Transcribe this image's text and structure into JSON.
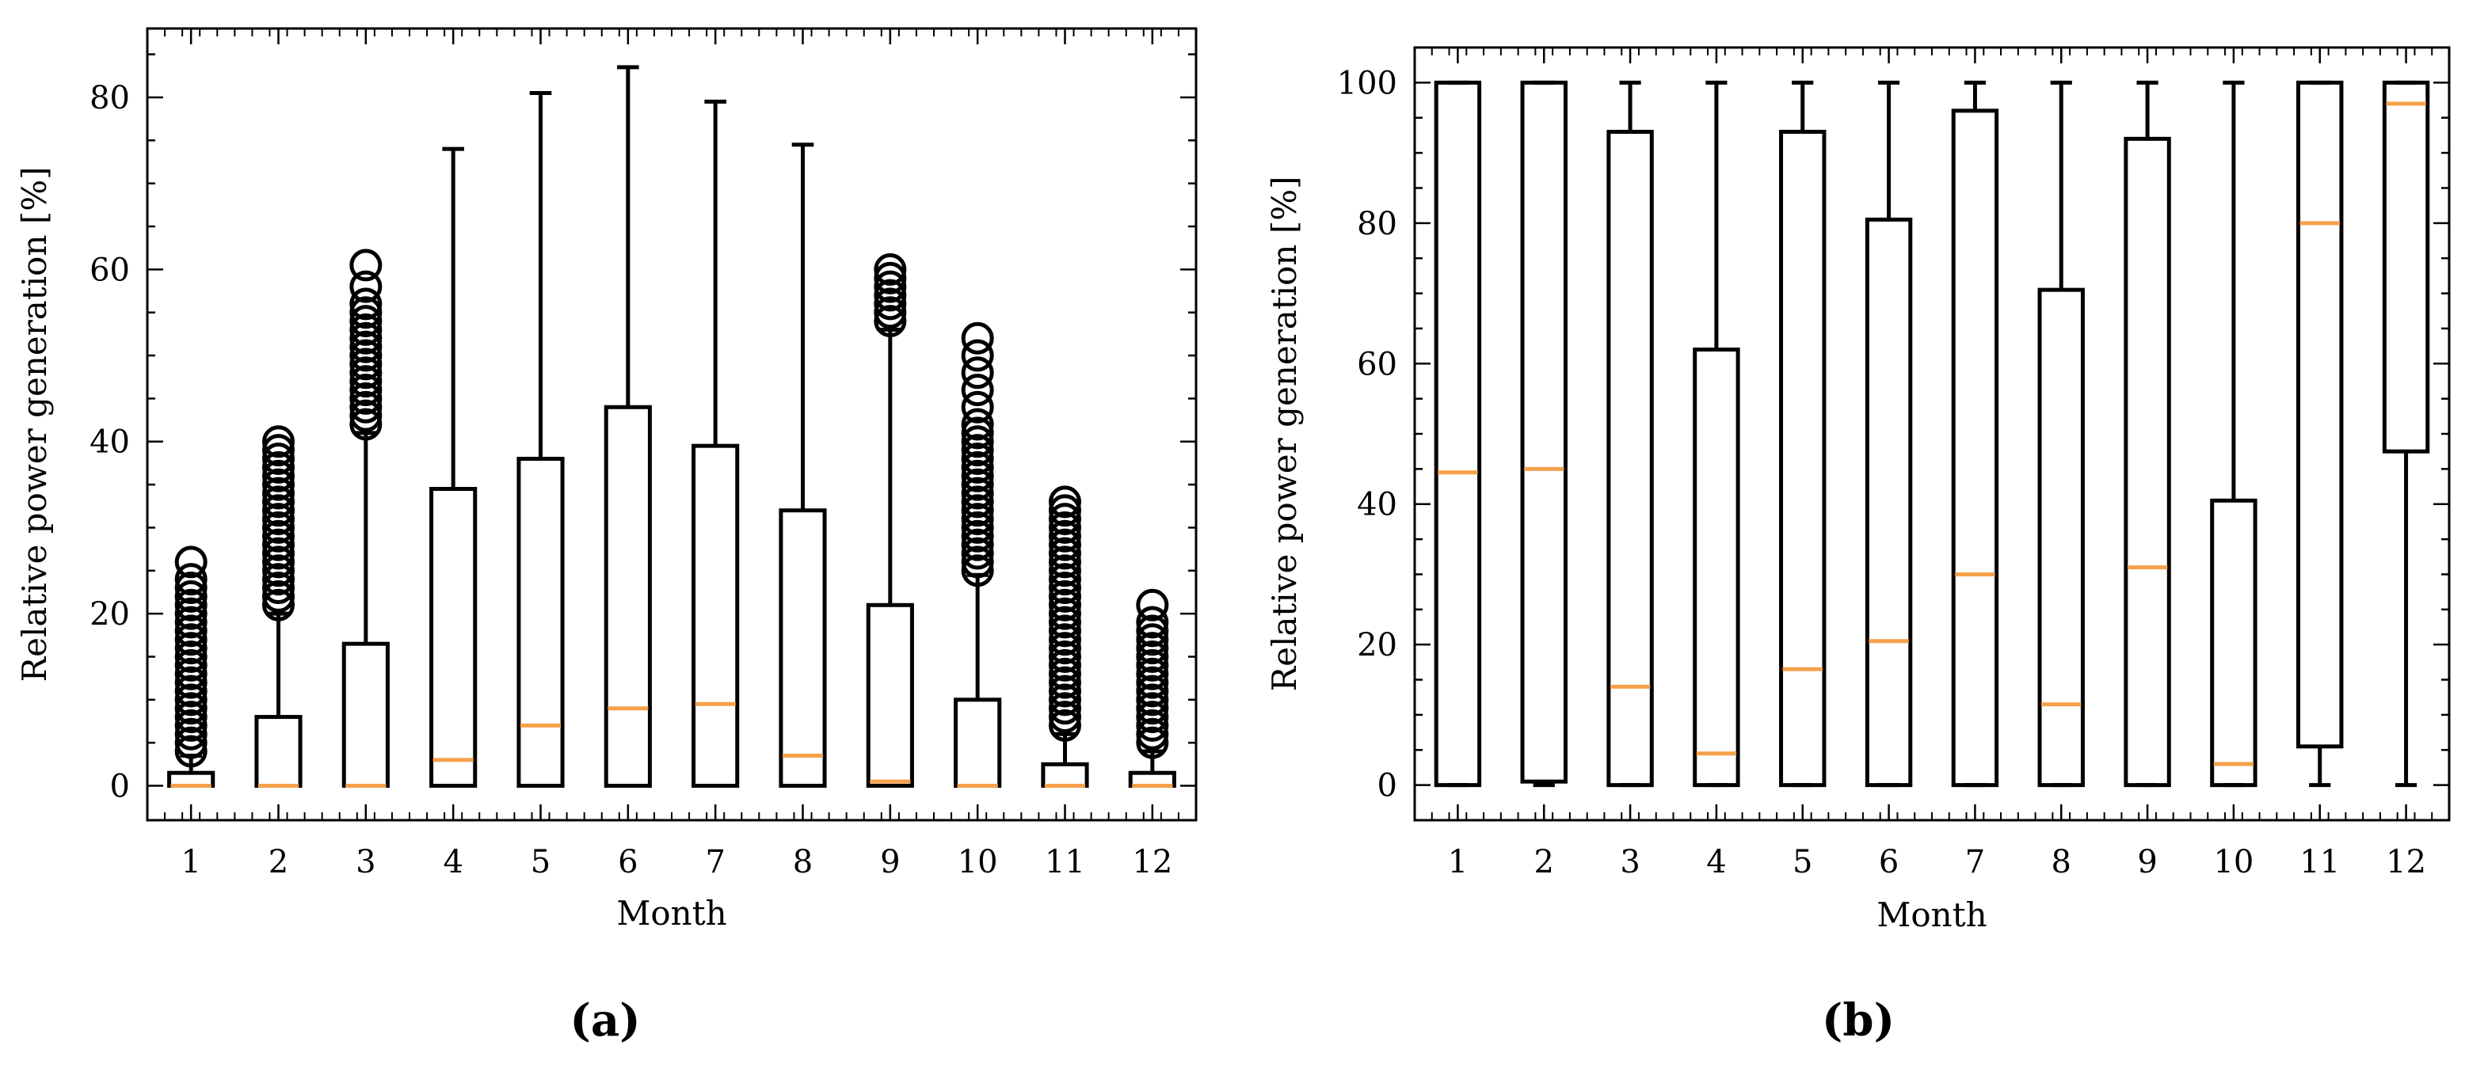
{
  "figure": {
    "panel_a_label": "(a)",
    "panel_b_label": "(b)"
  },
  "chart_data": [
    {
      "id": "a",
      "type": "box",
      "title": "",
      "xlabel": "Month",
      "ylabel": "Relative power generation [%]",
      "categories": [
        "1",
        "2",
        "3",
        "4",
        "5",
        "6",
        "7",
        "8",
        "9",
        "10",
        "11",
        "12"
      ],
      "ylim": [
        -4,
        88
      ],
      "yticks": [
        0,
        20,
        40,
        60,
        80
      ],
      "box_color": "#000000",
      "median_color": "#f5a14b",
      "boxes": [
        {
          "q1": 0,
          "median": 0,
          "q3": 1.5,
          "whislo": 0,
          "whishi": 3.5,
          "fliers": [
            4,
            5,
            6,
            7,
            8,
            9,
            10,
            11,
            12,
            13,
            14,
            15,
            16,
            17,
            18,
            19,
            20,
            21,
            22,
            23,
            24,
            26
          ]
        },
        {
          "q1": 0,
          "median": 0,
          "q3": 8,
          "whislo": 0,
          "whishi": 20,
          "fliers": [
            21,
            22,
            23,
            24,
            25,
            26,
            27,
            28,
            29,
            30,
            31,
            32,
            33,
            34,
            35,
            36,
            37,
            38,
            39,
            40
          ]
        },
        {
          "q1": 0,
          "median": 0,
          "q3": 16.5,
          "whislo": 0,
          "whishi": 41,
          "fliers": [
            42,
            43,
            44,
            45,
            46,
            47,
            48,
            49,
            50,
            51,
            52,
            53,
            54,
            55,
            56,
            58,
            60.5
          ]
        },
        {
          "q1": 0,
          "median": 3,
          "q3": 34.5,
          "whislo": 0,
          "whishi": 74,
          "fliers": []
        },
        {
          "q1": 0,
          "median": 7,
          "q3": 38,
          "whislo": 0,
          "whishi": 80.5,
          "fliers": []
        },
        {
          "q1": 0,
          "median": 9,
          "q3": 44,
          "whislo": 0,
          "whishi": 83.5,
          "fliers": []
        },
        {
          "q1": 0,
          "median": 9.5,
          "q3": 39.5,
          "whislo": 0,
          "whishi": 79.5,
          "fliers": []
        },
        {
          "q1": 0,
          "median": 3.5,
          "q3": 32,
          "whislo": 0,
          "whishi": 74.5,
          "fliers": []
        },
        {
          "q1": 0,
          "median": 0.5,
          "q3": 21,
          "whislo": 0,
          "whishi": 53,
          "fliers": [
            54,
            55,
            56,
            57,
            58,
            59,
            60
          ]
        },
        {
          "q1": 0,
          "median": 0,
          "q3": 10,
          "whislo": 0,
          "whishi": 24.5,
          "fliers": [
            25,
            26,
            27,
            28,
            29,
            30,
            31,
            32,
            33,
            34,
            35,
            36,
            37,
            38,
            39,
            40,
            41,
            42,
            44,
            46,
            48,
            50,
            52
          ]
        },
        {
          "q1": 0,
          "median": 0,
          "q3": 2.5,
          "whislo": 0,
          "whishi": 6,
          "fliers": [
            7,
            8,
            9,
            10,
            11,
            12,
            13,
            14,
            15,
            16,
            17,
            18,
            19,
            20,
            21,
            22,
            23,
            24,
            25,
            26,
            27,
            28,
            29,
            30,
            31,
            32,
            33
          ]
        },
        {
          "q1": 0,
          "median": 0,
          "q3": 1.5,
          "whislo": 0,
          "whishi": 4,
          "fliers": [
            5,
            6,
            7,
            8,
            9,
            10,
            11,
            12,
            13,
            14,
            15,
            16,
            17,
            18,
            19,
            21
          ]
        }
      ]
    },
    {
      "id": "b",
      "type": "box",
      "title": "",
      "xlabel": "Month",
      "ylabel": "Relative power generation [%]",
      "categories": [
        "1",
        "2",
        "3",
        "4",
        "5",
        "6",
        "7",
        "8",
        "9",
        "10",
        "11",
        "12"
      ],
      "ylim": [
        -5,
        105
      ],
      "yticks": [
        0,
        20,
        40,
        60,
        80,
        100
      ],
      "box_color": "#000000",
      "median_color": "#f5a14b",
      "boxes": [
        {
          "q1": 0,
          "median": 44.5,
          "q3": 100,
          "whislo": 0,
          "whishi": 100,
          "fliers": []
        },
        {
          "q1": 0.5,
          "median": 45,
          "q3": 100,
          "whislo": 0,
          "whishi": 100,
          "fliers": []
        },
        {
          "q1": 0,
          "median": 14,
          "q3": 93,
          "whislo": 0,
          "whishi": 100,
          "fliers": []
        },
        {
          "q1": 0,
          "median": 4.5,
          "q3": 62,
          "whislo": 0,
          "whishi": 100,
          "fliers": []
        },
        {
          "q1": 0,
          "median": 16.5,
          "q3": 93,
          "whislo": 0,
          "whishi": 100,
          "fliers": []
        },
        {
          "q1": 0,
          "median": 20.5,
          "q3": 80.5,
          "whislo": 0,
          "whishi": 100,
          "fliers": []
        },
        {
          "q1": 0,
          "median": 30,
          "q3": 96,
          "whislo": 0,
          "whishi": 100,
          "fliers": []
        },
        {
          "q1": 0,
          "median": 11.5,
          "q3": 70.5,
          "whislo": 0,
          "whishi": 100,
          "fliers": []
        },
        {
          "q1": 0,
          "median": 31,
          "q3": 92,
          "whislo": 0,
          "whishi": 100,
          "fliers": []
        },
        {
          "q1": 0,
          "median": 3,
          "q3": 40.5,
          "whislo": 0,
          "whishi": 100,
          "fliers": []
        },
        {
          "q1": 5.5,
          "median": 80,
          "q3": 100,
          "whislo": 0,
          "whishi": 100,
          "fliers": []
        },
        {
          "q1": 47.5,
          "median": 97,
          "q3": 100,
          "whislo": 0,
          "whishi": 100,
          "fliers": []
        }
      ]
    }
  ]
}
